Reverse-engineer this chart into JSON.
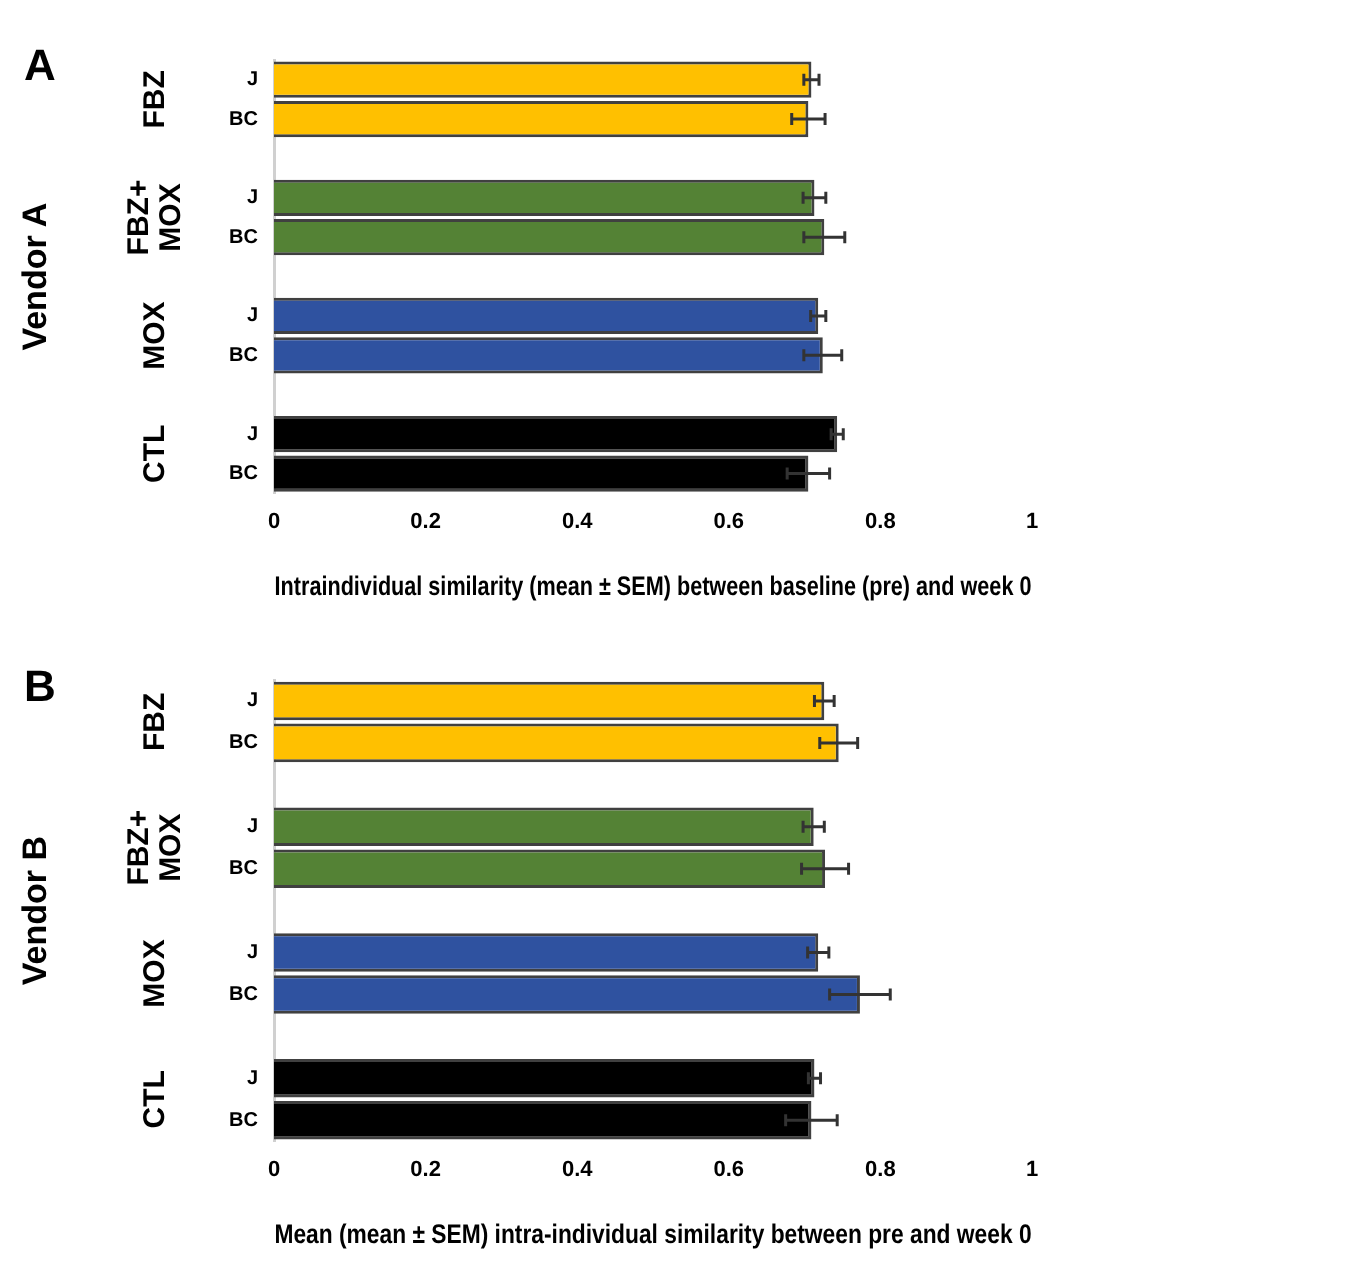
{
  "chart_data": [
    {
      "type": "bar",
      "orientation": "horizontal",
      "title": "A",
      "ylabel": "Vendor A",
      "xlabel": "Intraindividual similarity (mean ± SEM) between baseline (pre) and week 0",
      "categories": [
        "J",
        "BC",
        null,
        "J",
        "BC",
        null,
        "J",
        "BC",
        null,
        "J",
        "BC"
      ],
      "values": [
        0.709,
        0.705,
        null,
        0.713,
        0.726,
        null,
        0.718,
        0.724,
        null,
        0.743,
        0.705
      ],
      "errors": [
        0.01,
        0.022,
        null,
        0.015,
        0.027,
        null,
        0.01,
        0.025,
        null,
        0.008,
        0.028
      ],
      "colors": [
        "#ffc000",
        "#ffc000",
        null,
        "#548235",
        "#548235",
        null,
        "#2f52a0",
        "#2f52a0",
        null,
        "#000000",
        "#000000"
      ],
      "annotations": [
        "FBZ",
        "FBZ+MOX",
        "MOX",
        "CTL"
      ],
      "xlim": [
        0,
        1
      ],
      "xticks": [
        0,
        0.2,
        0.4,
        0.6,
        0.8,
        1
      ],
      "grid": false,
      "legend": false
    },
    {
      "type": "bar",
      "orientation": "horizontal",
      "title": "B",
      "ylabel": "Vendor B",
      "xlabel": "Mean (mean ± SEM) intra-individual similarity between pre and week 0",
      "categories": [
        "J",
        "BC",
        null,
        "J",
        "BC",
        null,
        "J",
        "BC",
        null,
        "J",
        "BC"
      ],
      "values": [
        0.726,
        0.745,
        null,
        0.712,
        0.727,
        null,
        0.718,
        0.773,
        null,
        0.713,
        0.709
      ],
      "errors": [
        0.013,
        0.025,
        null,
        0.014,
        0.031,
        null,
        0.014,
        0.04,
        null,
        0.008,
        0.034
      ],
      "colors": [
        "#ffc000",
        "#ffc000",
        null,
        "#548235",
        "#548235",
        null,
        "#2f52a0",
        "#2f52a0",
        null,
        "#000000",
        "#000000"
      ],
      "annotations": [
        "FBZ",
        "FBZ+MOX",
        "MOX",
        "CTL"
      ],
      "xlim": [
        0,
        1
      ],
      "xticks": [
        0,
        0.2,
        0.4,
        0.6,
        0.8,
        1
      ],
      "grid": false,
      "legend": false
    }
  ]
}
